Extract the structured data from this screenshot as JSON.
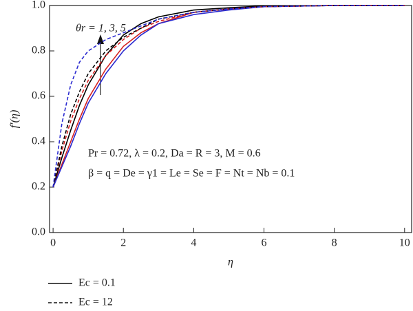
{
  "chart_data": {
    "type": "line",
    "xlabel": "η",
    "ylabel": "f′(η)",
    "annotations": [
      "θr = 1, 3, 5",
      "Pr = 0.72, λ = 0.2, Da = R = 3, M = 0.6",
      "β = q = De = γ1 = Le = Se = F = Nt = Nb = 0.1"
    ],
    "legend": [
      {
        "label": "Ec = 0.1",
        "dash": "solid"
      },
      {
        "label": "Ec = 12",
        "dash": "dashed"
      }
    ],
    "x": [
      0,
      0.25,
      0.5,
      0.75,
      1,
      1.5,
      2,
      2.5,
      3,
      4,
      5,
      6,
      8,
      10
    ],
    "series": [
      {
        "color": "#d62020",
        "dash": "solid",
        "values": [
          0.2,
          0.3,
          0.4,
          0.5,
          0.59,
          0.72,
          0.82,
          0.88,
          0.92,
          0.97,
          0.985,
          0.995,
          1,
          1
        ]
      },
      {
        "color": "#000000",
        "dash": "solid",
        "values": [
          0.2,
          0.33,
          0.45,
          0.56,
          0.65,
          0.78,
          0.87,
          0.92,
          0.95,
          0.98,
          0.99,
          0.998,
          1,
          1
        ]
      },
      {
        "color": "#2a2ad0",
        "dash": "solid",
        "values": [
          0.2,
          0.29,
          0.38,
          0.48,
          0.57,
          0.7,
          0.8,
          0.87,
          0.92,
          0.96,
          0.98,
          0.995,
          1,
          1
        ]
      },
      {
        "color": "#d62020",
        "dash": "dashed",
        "values": [
          0.2,
          0.36,
          0.49,
          0.59,
          0.67,
          0.78,
          0.85,
          0.9,
          0.93,
          0.97,
          0.985,
          0.995,
          1,
          1
        ]
      },
      {
        "color": "#000000",
        "dash": "dashed",
        "values": [
          0.2,
          0.38,
          0.52,
          0.62,
          0.7,
          0.8,
          0.86,
          0.9,
          0.94,
          0.97,
          0.985,
          0.995,
          1,
          1
        ]
      },
      {
        "color": "#2a2ad0",
        "dash": "dashed",
        "values": [
          0.2,
          0.48,
          0.65,
          0.75,
          0.8,
          0.85,
          0.88,
          0.91,
          0.94,
          0.97,
          0.985,
          0.995,
          1,
          1
        ]
      }
    ],
    "xlim": [
      -0.1,
      10.2
    ],
    "xticks": [
      0,
      2,
      4,
      6,
      8,
      10
    ],
    "ylim": [
      0,
      1
    ],
    "yticks": [
      {
        "value": 0,
        "label": "0.0"
      },
      {
        "value": 0.2,
        "label": "0.2"
      },
      {
        "value": 0.4,
        "label": "0.4"
      },
      {
        "value": 0.6,
        "label": "0.6"
      },
      {
        "value": 0.8,
        "label": "0.8"
      },
      {
        "value": 1,
        "label": "1.0"
      }
    ]
  }
}
